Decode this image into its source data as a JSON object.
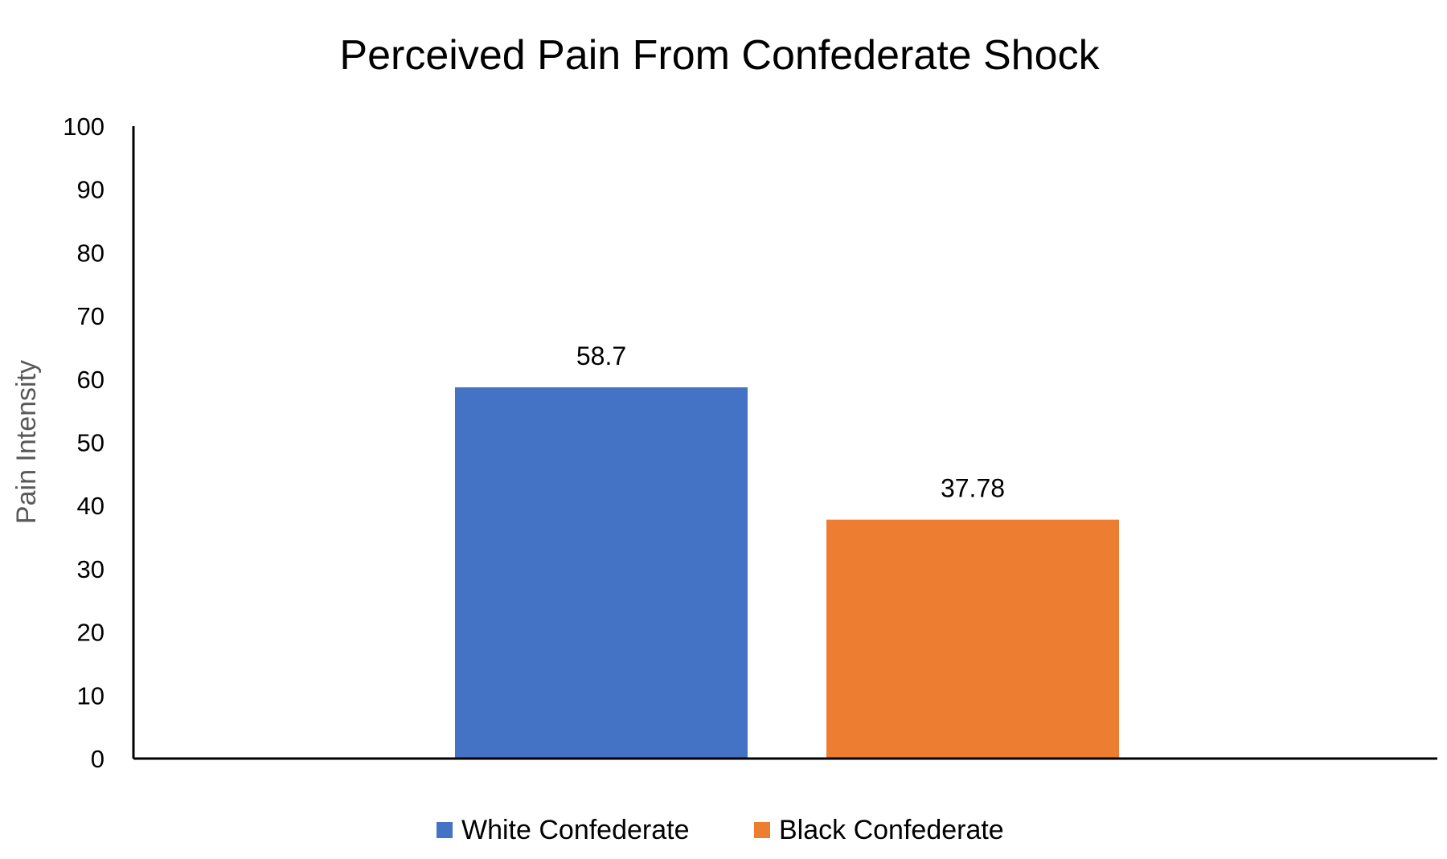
{
  "chart_data": {
    "type": "bar",
    "title": "Perceived Pain From Confederate Shock",
    "xlabel": "",
    "ylabel": "Pain Intensity",
    "ylim": [
      0,
      100
    ],
    "yticks": [
      0,
      10,
      20,
      30,
      40,
      50,
      60,
      70,
      80,
      90,
      100
    ],
    "grid": false,
    "legend_position": "bottom",
    "series": [
      {
        "name": "White Confederate",
        "values": [
          58.7
        ],
        "label": "58.7",
        "color": "#4472C4"
      },
      {
        "name": "Black Confederate",
        "values": [
          37.78
        ],
        "label": "37.78",
        "color": "#ED7D31"
      }
    ]
  }
}
